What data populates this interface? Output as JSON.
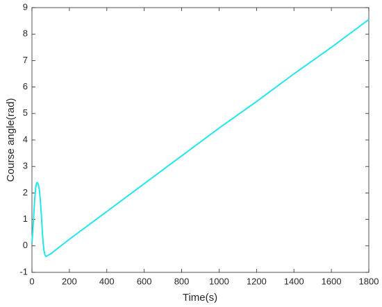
{
  "chart_data": {
    "type": "line",
    "x_label": "Time(s)",
    "y_label": "Course angle(rad)",
    "x": [
      0,
      5,
      10,
      15,
      20,
      25,
      30,
      35,
      40,
      45,
      50,
      55,
      60,
      65,
      70,
      75,
      80,
      100,
      200,
      400,
      600,
      800,
      1000,
      1200,
      1400,
      1600,
      1800
    ],
    "series": [
      {
        "name": "Course angle",
        "color": "#20e6ee",
        "values": [
          0.1,
          0.6,
          1.2,
          1.8,
          2.2,
          2.38,
          2.38,
          2.3,
          2.1,
          1.7,
          1.2,
          0.6,
          0.1,
          -0.2,
          -0.35,
          -0.4,
          -0.38,
          -0.3,
          0.25,
          1.3,
          2.35,
          3.4,
          4.45,
          5.45,
          6.5,
          7.5,
          8.55
        ]
      }
    ],
    "xlim": [
      0,
      1800
    ],
    "xticks": [
      0,
      200,
      400,
      600,
      800,
      1000,
      1200,
      1400,
      1600,
      1800
    ],
    "ylim": [
      -1,
      9
    ],
    "yticks": [
      -1,
      0,
      1,
      2,
      3,
      4,
      5,
      6,
      7,
      8,
      9
    ],
    "grid": false
  }
}
